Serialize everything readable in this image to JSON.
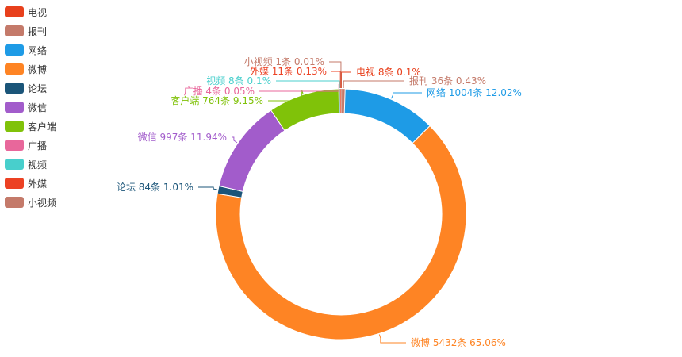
{
  "chart_data": {
    "type": "pie",
    "variant": "donut",
    "legend_position": "top-left",
    "slices": [
      {
        "name": "电视",
        "count": 8,
        "percent": 0.1,
        "label": "电视 8条  0.1%",
        "color": "#e8401c"
      },
      {
        "name": "报刊",
        "count": 36,
        "percent": 0.43,
        "label": "报刊 36条  0.43%",
        "color": "#c47a6a"
      },
      {
        "name": "网络",
        "count": 1004,
        "percent": 12.02,
        "label": "网络 1004条  12.02%",
        "color": "#1e9be6"
      },
      {
        "name": "微博",
        "count": 5432,
        "percent": 65.06,
        "label": "微博 5432条  65.06%",
        "color": "#fe8424"
      },
      {
        "name": "论坛",
        "count": 84,
        "percent": 1.01,
        "label": "论坛 84条  1.01%",
        "color": "#1b5579"
      },
      {
        "name": "微信",
        "count": 997,
        "percent": 11.94,
        "label": "微信 997条  11.94%",
        "color": "#a25ccb"
      },
      {
        "name": "客户端",
        "count": 764,
        "percent": 9.15,
        "label": "客户端 764条  9.15%",
        "color": "#80c209"
      },
      {
        "name": "广播",
        "count": 4,
        "percent": 0.05,
        "label": "广播 4条  0.05%",
        "color": "#e8679b"
      },
      {
        "name": "视频",
        "count": 8,
        "percent": 0.1,
        "label": "视频 8条  0.1%",
        "color": "#48cfcc"
      },
      {
        "name": "外媒",
        "count": 11,
        "percent": 0.13,
        "label": "外媒 11条  0.13%",
        "color": "#ec4123"
      },
      {
        "name": "小视频",
        "count": 1,
        "percent": 0.01,
        "label": "小视频 1条  0.01%",
        "color": "#c47a6a"
      }
    ]
  }
}
